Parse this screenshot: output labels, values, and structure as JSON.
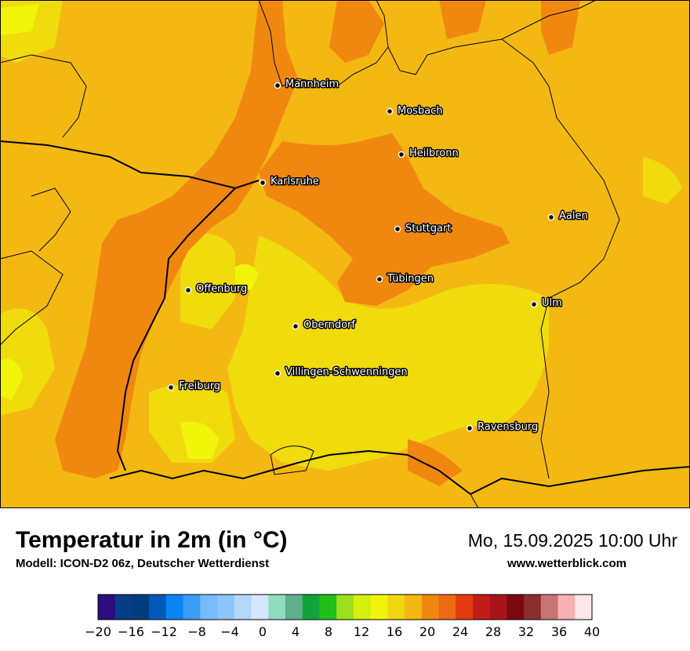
{
  "map": {
    "cities": [
      {
        "name": "Mannheim"
      },
      {
        "name": "Mosbach"
      },
      {
        "name": "Heilbronn"
      },
      {
        "name": "Karlsruhe"
      },
      {
        "name": "Aalen"
      },
      {
        "name": "Stuttgart"
      },
      {
        "name": "Tübingen"
      },
      {
        "name": "Offenburg"
      },
      {
        "name": "Ulm"
      },
      {
        "name": "Oberndorf"
      },
      {
        "name": "Villingen-Schwenningen"
      },
      {
        "name": "Freiburg"
      },
      {
        "name": "Ravensburg"
      }
    ]
  },
  "footer": {
    "title": "Temperatur in 2m (in °C)",
    "model": "Modell: ICON-D2 06z, Deutscher Wetterdienst",
    "datetime": "Mo, 15.09.2025 10:00 Uhr",
    "website": "www.wetterblick.com"
  },
  "legend": {
    "min": -20,
    "max": 40,
    "step": 2,
    "tick_labels": [
      "−20",
      "−16",
      "−12",
      "−8",
      "−4",
      "0",
      "4",
      "8",
      "12",
      "16",
      "20",
      "24",
      "28",
      "32",
      "36",
      "40"
    ],
    "colors": [
      "#2e0d7e",
      "#0a3b86",
      "#003d7f",
      "#0059b8",
      "#0a85f5",
      "#3a9cf5",
      "#78bbfb",
      "#8ec5fa",
      "#b3d6fb",
      "#d4e6fd",
      "#8fdcbf",
      "#5fae8c",
      "#12a43a",
      "#22bf1b",
      "#9be01a",
      "#d5ef0a",
      "#f1f50a",
      "#f2d610",
      "#f4b812",
      "#f08810",
      "#ec6a12",
      "#e43a10",
      "#c21c18",
      "#a8141c",
      "#7a0a10",
      "#8b2e2e",
      "#c67474",
      "#f5b2b2",
      "#fde6e8"
    ]
  },
  "colors": {
    "temp_16_18": "#f0db0c",
    "temp_18_20": "#f4b812",
    "temp_20_22": "#f08810",
    "temp_14_16": "#f1f50a",
    "border": "#000000"
  }
}
